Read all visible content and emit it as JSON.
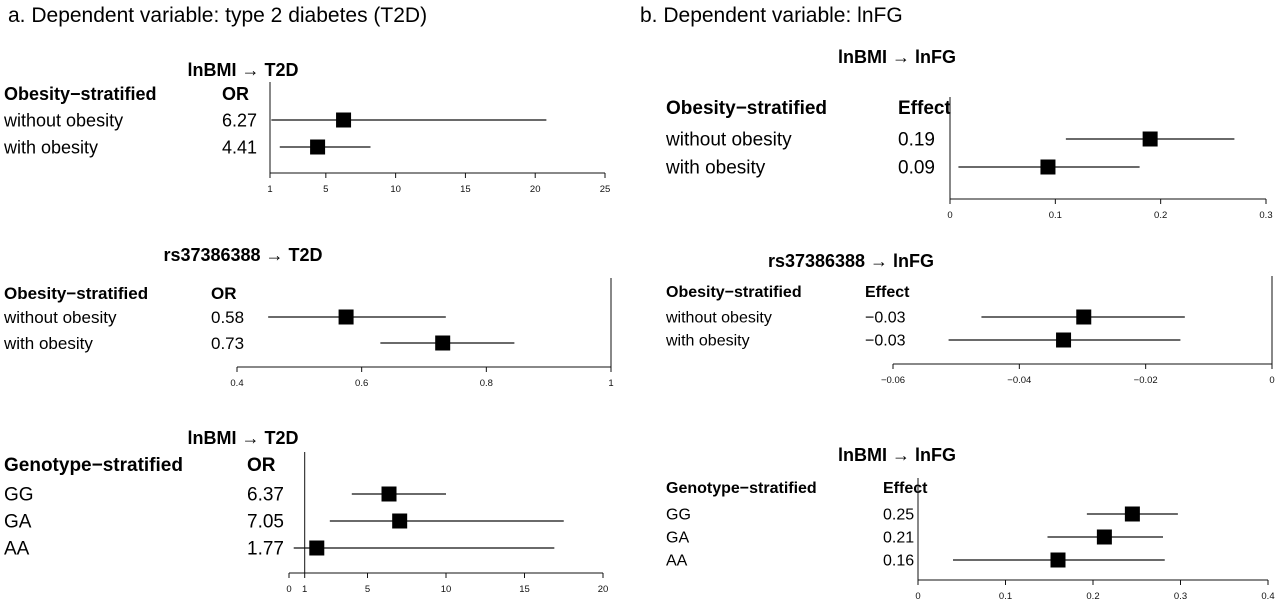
{
  "section_a_heading": "a. Dependent variable: type 2 diabetes (T2D)",
  "section_b_heading": "b. Dependent variable: lnFG",
  "chart_data": [
    {
      "type": "forest",
      "title": "lnBMI → T2D",
      "group_header": "Obesity−stratified",
      "value_header": "OR",
      "rows": [
        {
          "label": "without obesity",
          "value_text": "6.27",
          "estimate": 6.27,
          "ci": [
            1.1,
            20.8
          ]
        },
        {
          "label": "with obesity",
          "value_text": "4.41",
          "estimate": 4.41,
          "ci": [
            1.7,
            8.2
          ]
        }
      ],
      "xlim": [
        1,
        25
      ],
      "ticks": [
        1,
        5,
        10,
        15,
        20,
        25
      ],
      "tick_labels": [
        "1",
        "5",
        "10",
        "15",
        "20",
        "25"
      ],
      "ref_line": 1
    },
    {
      "type": "forest",
      "title": "rs37386388 → T2D",
      "group_header": "Obesity−stratified",
      "value_header": "OR",
      "rows": [
        {
          "label": "without obesity",
          "value_text": "0.58",
          "estimate": 0.575,
          "ci": [
            0.45,
            0.735
          ]
        },
        {
          "label": "with obesity",
          "value_text": "0.73",
          "estimate": 0.73,
          "ci": [
            0.63,
            0.845
          ]
        }
      ],
      "xlim": [
        0.4,
        1
      ],
      "ticks": [
        0.4,
        0.6,
        0.8,
        1
      ],
      "tick_labels": [
        "0.4",
        "0.6",
        "0.8",
        "1"
      ],
      "ref_line": 1
    },
    {
      "type": "forest",
      "title": "lnBMI → T2D",
      "group_header": "Genotype−stratified",
      "value_header": "OR",
      "rows": [
        {
          "label": "GG",
          "value_text": "6.37",
          "estimate": 6.37,
          "ci": [
            4,
            10
          ]
        },
        {
          "label": "GA",
          "value_text": "7.05",
          "estimate": 7.05,
          "ci": [
            2.6,
            17.5
          ]
        },
        {
          "label": "AA",
          "value_text": "1.77",
          "estimate": 1.77,
          "ci": [
            0.3,
            16.9
          ]
        }
      ],
      "xlim": [
        0,
        20
      ],
      "ticks": [
        0,
        1,
        5,
        10,
        15,
        20
      ],
      "tick_labels": [
        "0",
        "1",
        "5",
        "10",
        "15",
        "20"
      ],
      "ref_line": 1
    },
    {
      "type": "forest",
      "title": "lnBMI → lnFG",
      "group_header": "Obesity−stratified",
      "value_header": "Effect",
      "rows": [
        {
          "label": "without obesity",
          "value_text": "0.19",
          "estimate": 0.19,
          "ci": [
            0.11,
            0.27
          ]
        },
        {
          "label": "with obesity",
          "value_text": "0.09",
          "estimate": 0.093,
          "ci": [
            0.008,
            0.18
          ]
        }
      ],
      "xlim": [
        0,
        0.3
      ],
      "ticks": [
        0,
        0.1,
        0.2,
        0.3
      ],
      "tick_labels": [
        "0",
        "0.1",
        "0.2",
        "0.3"
      ],
      "ref_line": 0
    },
    {
      "type": "forest",
      "title": "rs37386388 → lnFG",
      "group_header": "Obesity−stratified",
      "value_header": "Effect",
      "rows": [
        {
          "label": "without obesity",
          "value_text": "−0.03",
          "estimate": -0.0298,
          "ci": [
            -0.046,
            -0.0138
          ]
        },
        {
          "label": "with obesity",
          "value_text": "−0.03",
          "estimate": -0.033,
          "ci": [
            -0.0512,
            -0.0145
          ]
        }
      ],
      "xlim": [
        -0.06,
        0
      ],
      "ticks": [
        -0.06,
        -0.04,
        -0.02,
        0
      ],
      "tick_labels": [
        "−0.06",
        "−0.04",
        "−0.02",
        "0"
      ],
      "ref_line": 0
    },
    {
      "type": "forest",
      "title": "lnBMI → lnFG",
      "group_header": "Genotype−stratified",
      "value_header": "Effect",
      "rows": [
        {
          "label": "GG",
          "value_text": "0.25",
          "estimate": 0.245,
          "ci": [
            0.193,
            0.297
          ]
        },
        {
          "label": "GA",
          "value_text": "0.21",
          "estimate": 0.213,
          "ci": [
            0.148,
            0.28
          ]
        },
        {
          "label": "AA",
          "value_text": "0.16",
          "estimate": 0.16,
          "ci": [
            0.04,
            0.282
          ]
        }
      ],
      "xlim": [
        0,
        0.4
      ],
      "ticks": [
        0,
        0.1,
        0.2,
        0.3,
        0.4
      ],
      "tick_labels": [
        "0",
        "0.1",
        "0.2",
        "0.3",
        "0.4"
      ],
      "ref_line": 0
    }
  ]
}
